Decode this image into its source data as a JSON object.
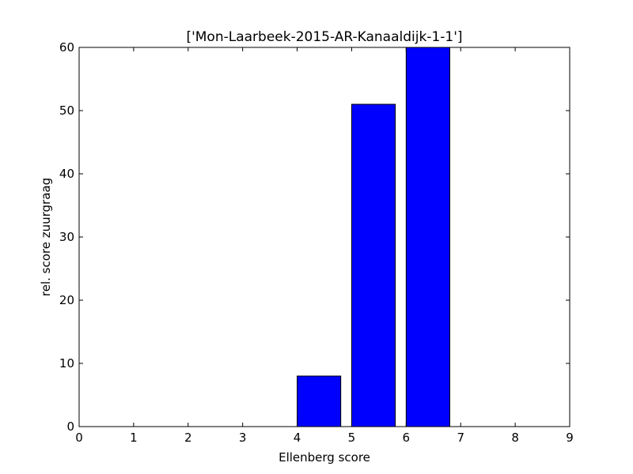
{
  "chart_data": {
    "type": "bar",
    "title": "['Mon-Laarbeek-2015-AR-Kanaaldijk-1-1']",
    "xlabel": "Ellenberg score",
    "ylabel": "rel. score zuurgraag",
    "xlim": [
      0,
      9
    ],
    "ylim": [
      0,
      60
    ],
    "xticks": [
      0,
      1,
      2,
      3,
      4,
      5,
      6,
      7,
      8,
      9
    ],
    "yticks": [
      0,
      10,
      20,
      30,
      40,
      50,
      60
    ],
    "bar_width": 0.8,
    "bar_color": "#0000ff",
    "bars": [
      {
        "x": 0,
        "value": 0
      },
      {
        "x": 1,
        "value": 0
      },
      {
        "x": 2,
        "value": 0
      },
      {
        "x": 3,
        "value": 0
      },
      {
        "x": 4,
        "value": 8
      },
      {
        "x": 5,
        "value": 51
      },
      {
        "x": 6,
        "value": 60
      },
      {
        "x": 7,
        "value": 0
      },
      {
        "x": 8,
        "value": 0
      }
    ],
    "grid": false,
    "legend": "none"
  }
}
